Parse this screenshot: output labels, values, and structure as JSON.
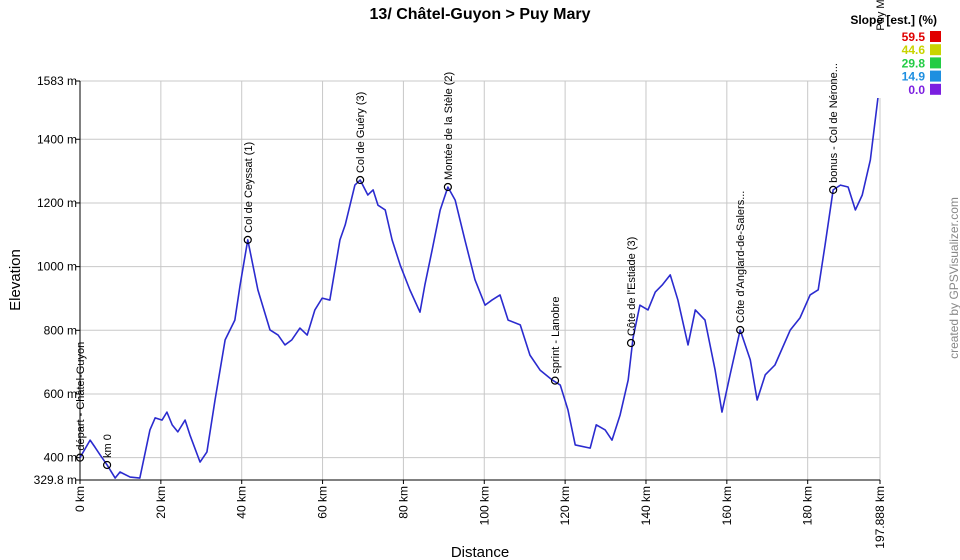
{
  "chart_data": {
    "type": "line",
    "title": "13/ Châtel-Guyon > Puy Mary",
    "x_label": "Distance",
    "y_label": "Elevation",
    "credit": "created by GPSVisualizer.com",
    "xlim": [
      0,
      197.888
    ],
    "ylim": [
      329.8,
      1583
    ],
    "grid": true,
    "xticks": [
      {
        "value": 0,
        "label": "0 km"
      },
      {
        "value": 20,
        "label": "20 km"
      },
      {
        "value": 40,
        "label": "40 km"
      },
      {
        "value": 60,
        "label": "60 km"
      },
      {
        "value": 80,
        "label": "80 km"
      },
      {
        "value": 100,
        "label": "100 km"
      },
      {
        "value": 120,
        "label": "120 km"
      },
      {
        "value": 140,
        "label": "140 km"
      },
      {
        "value": 160,
        "label": "160 km"
      },
      {
        "value": 180,
        "label": "180 km"
      },
      {
        "value": 197.888,
        "label": "197.888 km"
      }
    ],
    "yticks": [
      {
        "value": 329.8,
        "label": "329.8 m"
      },
      {
        "value": 400,
        "label": "400 m"
      },
      {
        "value": 600,
        "label": "600 m"
      },
      {
        "value": 800,
        "label": "800 m"
      },
      {
        "value": 1000,
        "label": "1000 m"
      },
      {
        "value": 1200,
        "label": "1200 m"
      },
      {
        "value": 1400,
        "label": "1400 m"
      },
      {
        "value": 1583,
        "label": "1583 m"
      }
    ],
    "x": [
      0,
      2.5,
      3.7,
      5,
      6.7,
      8.7,
      9.9,
      12.4,
      14.8,
      17.3,
      18.6,
      20.3,
      21.5,
      22.8,
      24.2,
      26,
      27.2,
      29.7,
      31.4,
      33.4,
      35.9,
      38.3,
      39.6,
      41.5,
      44,
      47,
      49,
      50.7,
      52.4,
      54.4,
      56.2,
      58.1,
      59.9,
      61.8,
      64.3,
      65.6,
      68,
      69.3,
      71.2,
      72.5,
      73.7,
      75.5,
      77.2,
      79.2,
      81.6,
      84.1,
      85.3,
      87.1,
      89.1,
      91,
      92.8,
      95.2,
      97.7,
      100.2,
      101.9,
      103.9,
      105.9,
      108.9,
      111.3,
      113.8,
      116.8,
      118.8,
      120.7,
      122.5,
      126.2,
      127.7,
      129.9,
      131.6,
      133.6,
      135.6,
      136.8,
      138.5,
      140.5,
      142.3,
      144,
      146,
      147.9,
      150.4,
      152.2,
      154.6,
      157.1,
      158.8,
      160.8,
      163.3,
      165.8,
      167.5,
      169.5,
      171.9,
      175.7,
      178.1,
      180.6,
      182.6,
      184.3,
      186.3,
      188.1,
      190,
      191.8,
      193.5,
      195.5,
      197.888
    ],
    "series": [
      {
        "color": "#2b2bcf",
        "values": [
          400,
          455,
          433,
          408,
          377,
          336,
          355,
          339,
          336,
          487,
          525,
          518,
          543,
          503,
          481,
          518,
          471,
          386,
          418,
          581,
          770,
          832,
          942,
          1084,
          927,
          801,
          785,
          754,
          770,
          807,
          785,
          864,
          901,
          895,
          1084,
          1131,
          1256,
          1272,
          1225,
          1241,
          1193,
          1178,
          1084,
          1005,
          927,
          857,
          942,
          1052,
          1178,
          1250,
          1209,
          1084,
          959,
          879,
          895,
          911,
          832,
          817,
          722,
          675,
          644,
          628,
          550,
          440,
          430,
          503,
          487,
          455,
          534,
          644,
          776,
          879,
          864,
          920,
          942,
          974,
          895,
          754,
          864,
          832,
          675,
          543,
          660,
          801,
          707,
          581,
          660,
          691,
          801,
          839,
          911,
          927,
          1068,
          1241,
          1256,
          1250,
          1178,
          1225,
          1335,
          1583
        ]
      }
    ],
    "annotations": [
      {
        "label": "départ - Châtel-Guyon",
        "x": 0,
        "y": 400
      },
      {
        "label": "km 0",
        "x": 6.7,
        "y": 377
      },
      {
        "label": "Col de Ceyssat (1)",
        "x": 41.5,
        "y": 1084
      },
      {
        "label": "Col de Guéry (3)",
        "x": 69.3,
        "y": 1272
      },
      {
        "label": "Montée de la Stèle (2)",
        "x": 91,
        "y": 1250
      },
      {
        "label": "sprint - Lanobre",
        "x": 117.5,
        "y": 642
      },
      {
        "label": "Côte de l'Estiade (3)",
        "x": 136.3,
        "y": 760
      },
      {
        "label": "Côte d'Anglard-de-Salers...",
        "x": 163.3,
        "y": 801
      },
      {
        "label": "bonus - Col de Nérone...",
        "x": 186.3,
        "y": 1241
      },
      {
        "label": "arrivée - Puy Mary",
        "x": 197.888,
        "y": 1583
      }
    ],
    "legend": {
      "title": "Slope [est.] (%)",
      "position": "top-right",
      "entries": [
        {
          "value": 59.5,
          "color": "#e00000"
        },
        {
          "value": 44.6,
          "color": "#c8d400"
        },
        {
          "value": 29.8,
          "color": "#22cc44"
        },
        {
          "value": 14.9,
          "color": "#1e8fe0"
        },
        {
          "value": 0,
          "label": "0.0",
          "color": "#7b1fe0"
        }
      ]
    }
  }
}
